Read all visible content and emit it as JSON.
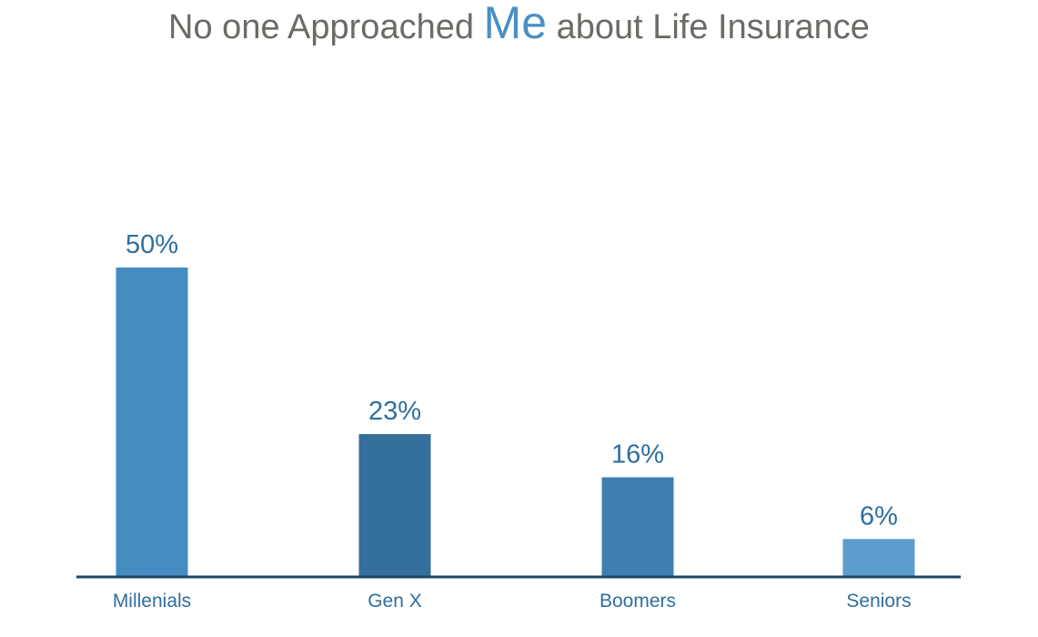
{
  "title": {
    "before": "No one Approached",
    "highlight": "Me",
    "after": "about Life Insurance"
  },
  "chart_data": {
    "type": "bar",
    "categories": [
      "Millenials",
      "Gen X",
      "Boomers",
      "Seniors"
    ],
    "values": [
      50,
      23,
      16,
      6
    ],
    "data_labels": [
      "50%",
      "23%",
      "16%",
      "6%"
    ],
    "ylim": [
      0,
      50
    ],
    "grid": false,
    "legend": "none",
    "bar_colors": [
      "#458cc1",
      "#356f9b",
      "#3d7fb3",
      "#5b9dcc"
    ],
    "baseline_color": "#1c4564",
    "label_color": "#2f6e9f",
    "title_color": "#6b6b66",
    "highlight_color": "#4a8fc4"
  }
}
